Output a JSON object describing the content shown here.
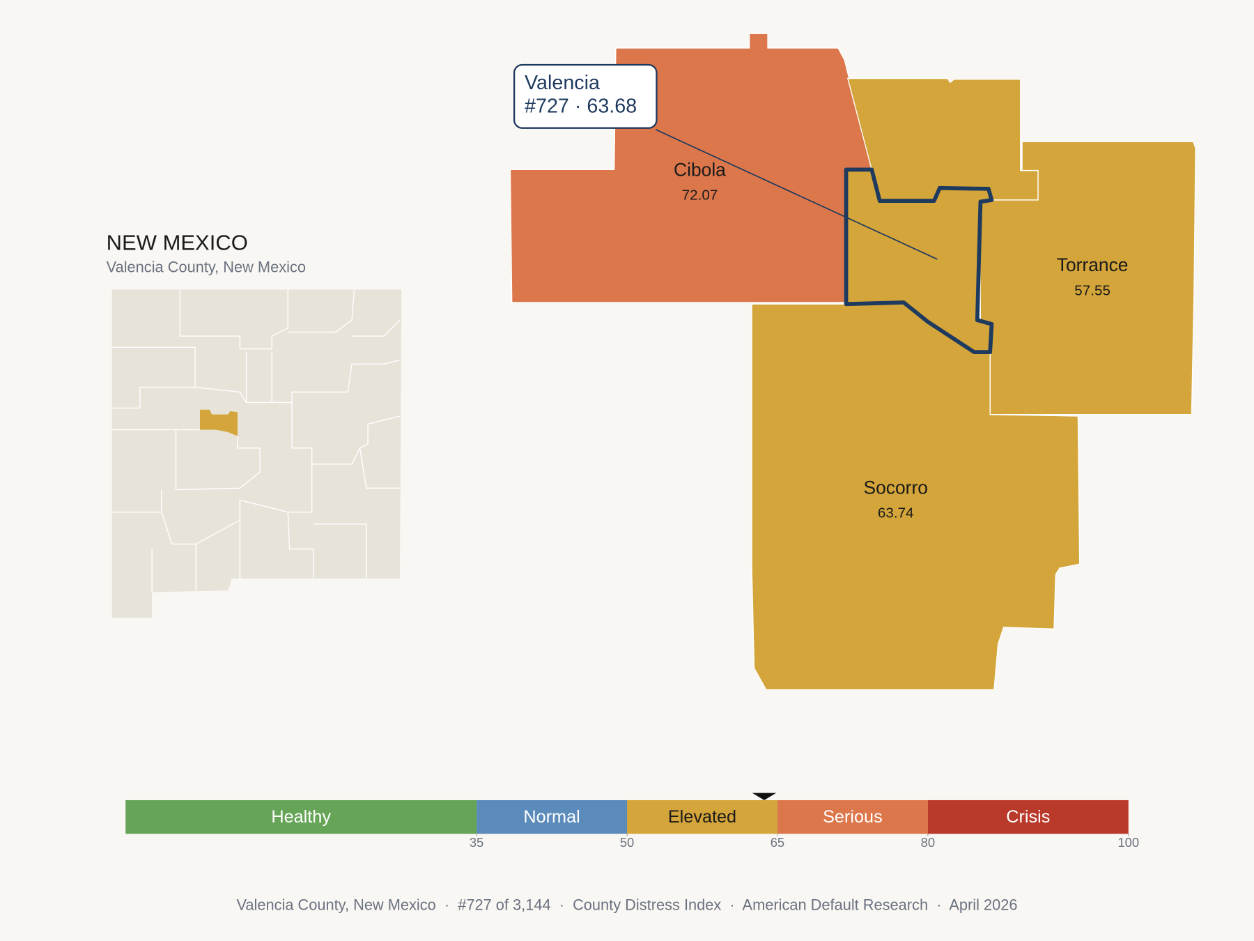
{
  "inset": {
    "title": "NEW MEXICO",
    "subtitle": "Valencia County, New Mexico"
  },
  "map": {
    "counties": [
      {
        "name": "Cibola",
        "value": 72.07,
        "color": "#dc774b"
      },
      {
        "name": "Torrance",
        "value": 57.55,
        "color": "#d4a53a"
      },
      {
        "name": "Socorro",
        "value": 63.74,
        "color": "#d4a53a"
      }
    ],
    "selected": {
      "name": "Valencia",
      "detail": "#727 · 63.68",
      "value": 63.68,
      "color": "#d4a53a"
    }
  },
  "scale": {
    "xlim": [
      0,
      100
    ],
    "ticks": [
      35,
      50,
      65,
      80,
      100
    ],
    "bands": [
      {
        "name": "Healthy",
        "color": "#66a557"
      },
      {
        "name": "Normal",
        "color": "#5b8bbb"
      },
      {
        "name": "Elevated",
        "color": "#d4a53a"
      },
      {
        "name": "Serious",
        "color": "#dc774b"
      },
      {
        "name": "Crisis",
        "color": "#b93a2b"
      }
    ]
  },
  "footer": "Valencia County, New Mexico  ·  #727 of 3,144  ·  County Distress Index  ·  American Default Research  ·  April 2026"
}
